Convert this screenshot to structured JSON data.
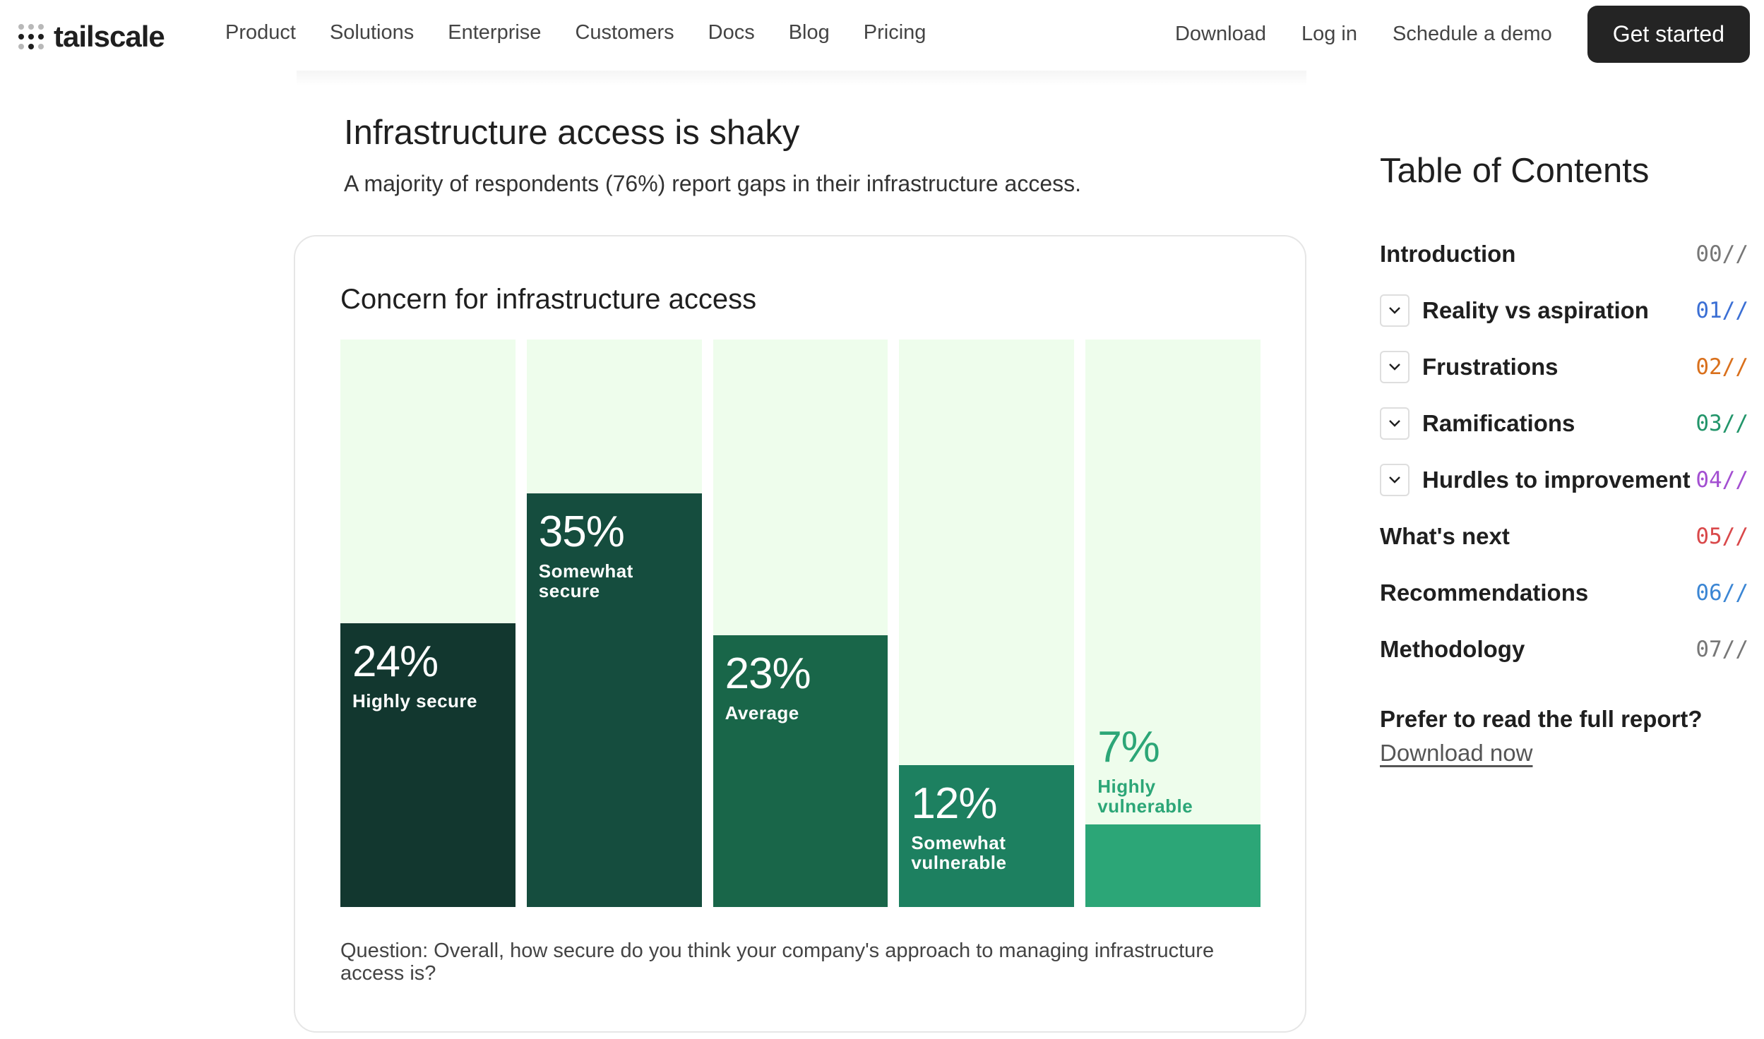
{
  "nav": {
    "logo_text": "tailscale",
    "links": [
      "Product",
      "Solutions",
      "Enterprise",
      "Customers",
      "Docs",
      "Blog",
      "Pricing"
    ],
    "right_links": [
      "Download",
      "Log in",
      "Schedule a demo"
    ],
    "cta": "Get started"
  },
  "section": {
    "title": "Infrastructure access is shaky",
    "subtitle": "A majority of respondents (76%) report gaps in their infrastructure access."
  },
  "chart_data": {
    "type": "bar",
    "title": "Concern for infrastructure access",
    "categories": [
      "Highly secure",
      "Somewhat secure",
      "Average",
      "Somewhat vulnerable",
      "Highly vulnerable"
    ],
    "values": [
      24,
      35,
      23,
      12,
      7
    ],
    "value_labels": [
      "24%",
      "35%",
      "23%",
      "12%",
      "7%"
    ],
    "label_lines": [
      [
        "Highly secure"
      ],
      [
        "Somewhat",
        "secure"
      ],
      [
        "Average"
      ],
      [
        "Somewhat",
        "vulnerable"
      ],
      [
        "Highly",
        "vulnerable"
      ]
    ],
    "ylim": [
      0,
      48
    ],
    "colors": [
      "#12372f",
      "#154d3e",
      "#196649",
      "#1d8060",
      "#2ca677"
    ],
    "background_color": "#eefdec",
    "xlabel": "",
    "ylabel": "",
    "question": "Question: Overall, how secure do you think your company's approach to managing infrastructure access is?"
  },
  "toc": {
    "title": "Table of Contents",
    "items": [
      {
        "label": "Introduction",
        "num": "00",
        "color": "#777777",
        "expandable": false
      },
      {
        "label": "Reality vs aspiration",
        "num": "01",
        "color": "#3b6fd4",
        "expandable": true
      },
      {
        "label": "Frustrations",
        "num": "02",
        "color": "#d9701c",
        "expandable": true
      },
      {
        "label": "Ramifications",
        "num": "03",
        "color": "#22956a",
        "expandable": true
      },
      {
        "label": "Hurdles to improvement",
        "num": "04",
        "color": "#a34fd1",
        "expandable": true
      },
      {
        "label": "What's next",
        "num": "05",
        "color": "#d9484a",
        "expandable": false
      },
      {
        "label": "Recommendations",
        "num": "06",
        "color": "#3b86d4",
        "expandable": false
      },
      {
        "label": "Methodology",
        "num": "07",
        "color": "#777777",
        "expandable": false
      }
    ],
    "slashes": "//",
    "prefer_text": "Prefer to read the full report?",
    "download_text": "Download now"
  }
}
